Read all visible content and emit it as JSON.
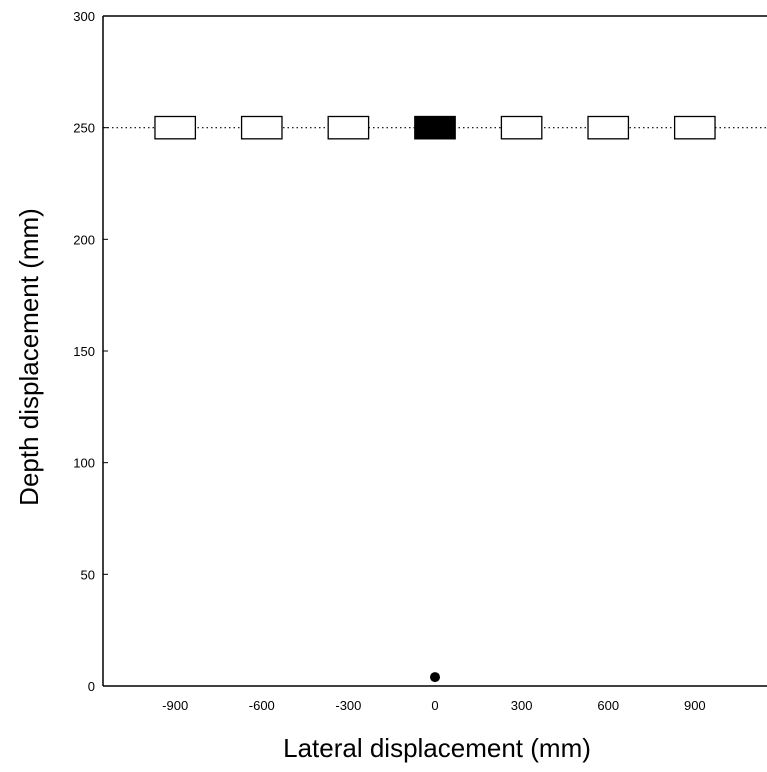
{
  "chart_data": {
    "type": "scatter",
    "title": "",
    "xlabel": "Lateral displacement (mm)",
    "ylabel": "Depth displacement (mm)",
    "xlim": [
      -1150,
      1150
    ],
    "ylim": [
      0,
      300
    ],
    "x_ticks": [
      -900,
      -600,
      -300,
      0,
      300,
      600,
      900
    ],
    "x_tick_labels": [
      "-900",
      "-600",
      "-300",
      "0",
      "300",
      "600",
      "900"
    ],
    "y_ticks": [
      0,
      50,
      100,
      150,
      200,
      250,
      300
    ],
    "y_tick_labels": [
      "0",
      "50",
      "100",
      "150",
      "200",
      "250",
      "300"
    ],
    "grid": false,
    "reference_line": {
      "y": 250,
      "style": "dotted"
    },
    "targets": [
      {
        "x": -900,
        "y": 250,
        "filled": false
      },
      {
        "x": -600,
        "y": 250,
        "filled": false
      },
      {
        "x": -300,
        "y": 250,
        "filled": false
      },
      {
        "x": 0,
        "y": 250,
        "filled": true
      },
      {
        "x": 300,
        "y": 250,
        "filled": false
      },
      {
        "x": 600,
        "y": 250,
        "filled": false
      },
      {
        "x": 900,
        "y": 250,
        "filled": false
      }
    ],
    "target_width": 140,
    "target_height": 10,
    "origin_point": {
      "x": 0,
      "y": 4
    },
    "colors": {
      "axis": "#000000",
      "filled": "#000000",
      "empty": "#ffffff",
      "background": "#ffffff"
    }
  }
}
